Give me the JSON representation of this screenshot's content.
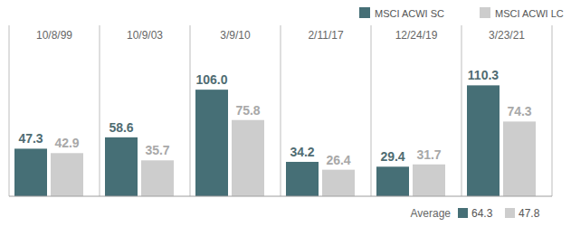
{
  "chart_data": {
    "type": "bar",
    "categories": [
      "10/8/99",
      "10/9/03",
      "3/9/10",
      "2/11/17",
      "12/24/19",
      "3/23/21"
    ],
    "series": [
      {
        "name": "MSCI ACWI SC",
        "color": "#466f76",
        "values": [
          47.3,
          58.6,
          106.0,
          34.2,
          29.4,
          110.3
        ],
        "average": 64.3
      },
      {
        "name": "MSCI ACWI LC",
        "color": "#cdcdcd",
        "values": [
          42.9,
          35.7,
          75.8,
          26.4,
          31.7,
          74.3
        ],
        "average": 47.8
      }
    ],
    "average_label": "Average",
    "ylim": [
      0,
      170
    ],
    "data_labels": true,
    "tick_labels": "x",
    "legend": "top-right",
    "grid": false
  }
}
